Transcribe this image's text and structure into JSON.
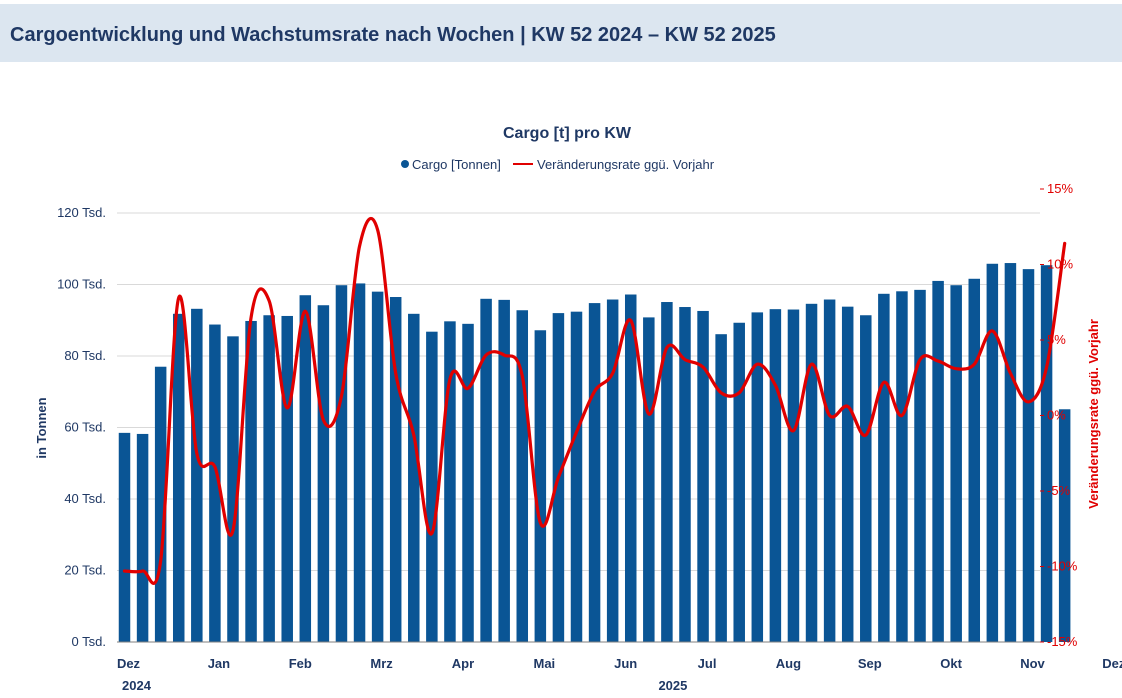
{
  "header": {
    "title": "Cargoentwicklung und Wachstumsrate nach Wochen | KW 52 2024 – KW 52 2025"
  },
  "colors": {
    "bar": "#0a5595",
    "line": "#e00000",
    "text": "#1f3864",
    "header_bg": "#dce6f0"
  },
  "chart_data": {
    "type": "bar",
    "title": "Cargo [t] pro KW",
    "legend": [
      "Cargo [Tonnen]",
      "Veränderungsrate ggü. Vorjahr"
    ],
    "legend_position": "top-center",
    "ylabel": "in Tonnen",
    "y2label": "Veränderungsrate ggü. Vorjahr",
    "ylim": [
      0,
      120000
    ],
    "y2lim": [
      -15,
      15
    ],
    "yticks": [
      0,
      20000,
      40000,
      60000,
      80000,
      100000,
      120000
    ],
    "yticklabels": [
      "0 Tsd.",
      "20 Tsd.",
      "40 Tsd.",
      "60 Tsd.",
      "80 Tsd.",
      "100 Tsd.",
      "120 Tsd."
    ],
    "y2ticks": [
      -15,
      -10,
      -5,
      0,
      5,
      10,
      15
    ],
    "y2ticklabels": [
      "-15%",
      "-10%",
      "-5%",
      "0%",
      "5%",
      "10%",
      "15%"
    ],
    "grid": true,
    "month_labels": [
      {
        "label": "Dez",
        "week": 0,
        "year": "2024"
      },
      {
        "label": "Jan",
        "week": 5
      },
      {
        "label": "Feb",
        "week": 9.5
      },
      {
        "label": "Mrz",
        "week": 14
      },
      {
        "label": "Apr",
        "week": 18.5
      },
      {
        "label": "Mai",
        "week": 23
      },
      {
        "label": "Jun",
        "week": 27.5
      },
      {
        "label": "Jul",
        "week": 32
      },
      {
        "label": "Aug",
        "week": 36.5
      },
      {
        "label": "Sep",
        "week": 41
      },
      {
        "label": "Okt",
        "week": 45.5
      },
      {
        "label": "Nov",
        "week": 50
      },
      {
        "label": "Dez",
        "week": 54.5
      }
    ],
    "year_labels": [
      {
        "label": "2024",
        "week": 0
      },
      {
        "label": "2025",
        "week": 30
      }
    ],
    "series": [
      {
        "name": "Cargo [Tonnen]",
        "type": "bar",
        "values": [
          58500,
          58200,
          77000,
          91800,
          93200,
          88800,
          85500,
          89800,
          91400,
          91200,
          97000,
          94200,
          99800,
          100300,
          98000,
          96500,
          91800,
          86800,
          89700,
          89000,
          96000,
          95700,
          92800,
          87200,
          92000,
          92400,
          94800,
          95800,
          97200,
          90800,
          95100,
          93700,
          92600,
          86100,
          89300,
          92200,
          93100,
          93000,
          94600,
          95800,
          93800,
          91400,
          97400,
          98100,
          98500,
          101000,
          99800,
          101600,
          105800,
          106000,
          104300,
          105400,
          65100
        ]
      },
      {
        "name": "Veränderungsrate ggü. Vorjahr",
        "type": "line",
        "values": [
          -10.3,
          -10.3,
          -9.6,
          7.8,
          -2.5,
          -3.4,
          -7.6,
          6.5,
          7.6,
          0.5,
          6.9,
          -0.3,
          1.3,
          11.2,
          12.3,
          2.8,
          -1.3,
          -7.8,
          2.4,
          1.8,
          4.0,
          4.0,
          2.6,
          -7.1,
          -4.1,
          -1.1,
          1.6,
          2.8,
          6.3,
          0.1,
          4.5,
          3.7,
          3.2,
          1.5,
          1.5,
          3.4,
          2.0,
          -1.0,
          3.4,
          0.0,
          0.6,
          -1.3,
          2.2,
          0.0,
          3.7,
          3.6,
          3.1,
          3.4,
          5.6,
          2.8,
          0.9,
          3.2,
          11.4
        ]
      }
    ]
  }
}
